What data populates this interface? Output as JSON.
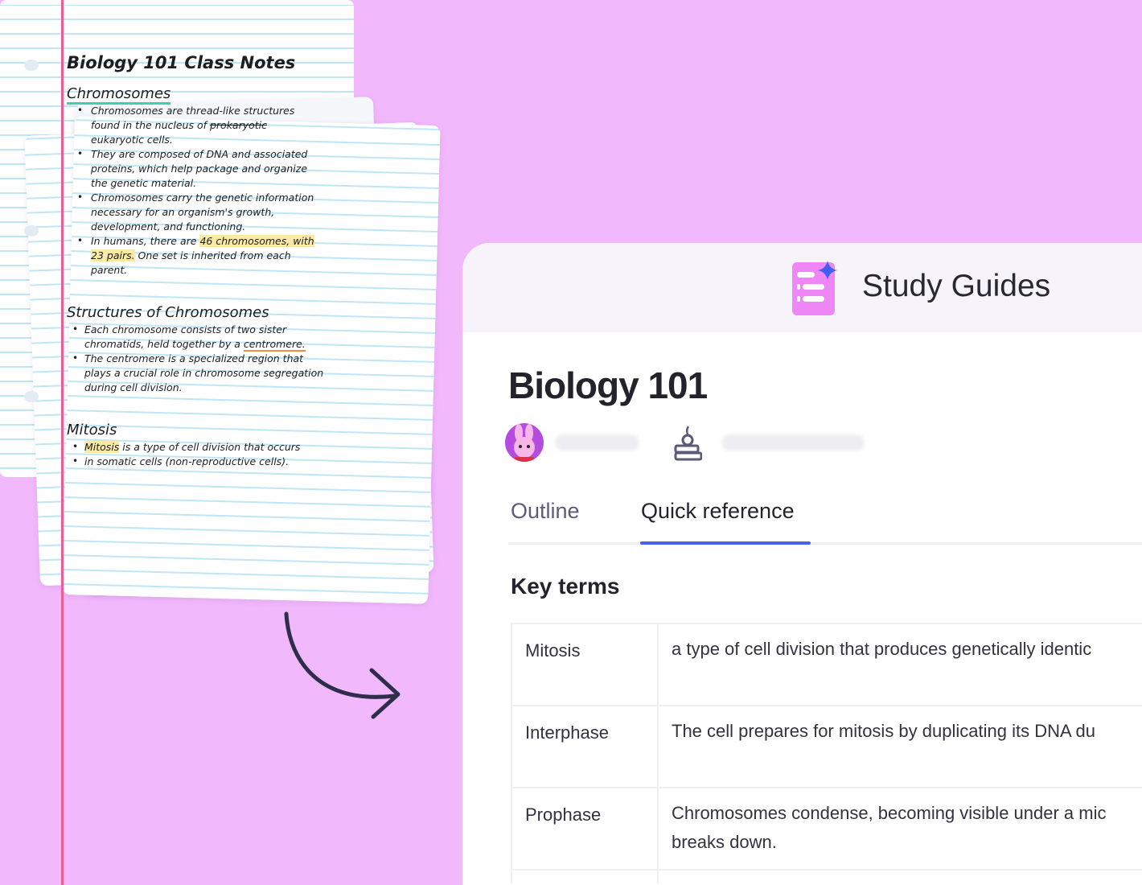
{
  "notes": {
    "title": "Biology 101 Class Notes",
    "sections": [
      {
        "heading": "Chromosomes",
        "lines": [
          [
            "Chromosomes are thread-like structures"
          ],
          [
            "found in the nucleus of ",
            "prokaryotic"
          ],
          [
            "eukaryotic cells."
          ],
          [
            "They are composed of DNA and associated"
          ],
          [
            "proteins, which help package and organize"
          ],
          [
            "the genetic material."
          ],
          [
            "Chromosomes carry the genetic information"
          ],
          [
            "necessary for an organism's growth,"
          ],
          [
            "development, and functioning."
          ],
          [
            "In humans, there are ",
            "46 chromosomes, with"
          ],
          [
            "23 pairs.",
            " One set is inherited from each"
          ],
          [
            "parent."
          ]
        ]
      },
      {
        "heading": "Structures of Chromosomes",
        "lines": [
          [
            "Each chromosome consists of two sister"
          ],
          [
            "chromatids, held together by a ",
            "centromere."
          ],
          [
            "The centromere is a specialized region that"
          ],
          [
            "plays a crucial role in chromosome segregation"
          ],
          [
            "during cell division."
          ]
        ]
      },
      {
        "heading": "Mitosis",
        "lines": [
          [
            "Mitosis",
            " is a type of cell division that occurs"
          ],
          [
            "in somatic cells (non-reproductive cells)."
          ]
        ]
      }
    ]
  },
  "app": {
    "name": "Study Guides",
    "icon": "study-guide-sparkle-icon",
    "accent": "#4763e4",
    "brand": "#ef86f5"
  },
  "guide": {
    "title": "Biology 101",
    "tabs": [
      {
        "label": "Outline",
        "active": false
      },
      {
        "label": "Quick reference",
        "active": true
      }
    ],
    "section_title": "Key terms",
    "terms": [
      {
        "term": "Mitosis",
        "definition": "a type of cell division that produces genetically identic"
      },
      {
        "term": "Interphase",
        "definition": "The cell prepares for mitosis by duplicating its DNA du"
      },
      {
        "term": "Prophase",
        "definition": "Chromosomes condense, becoming visible under a mic",
        "definition2": "breaks down."
      }
    ]
  }
}
